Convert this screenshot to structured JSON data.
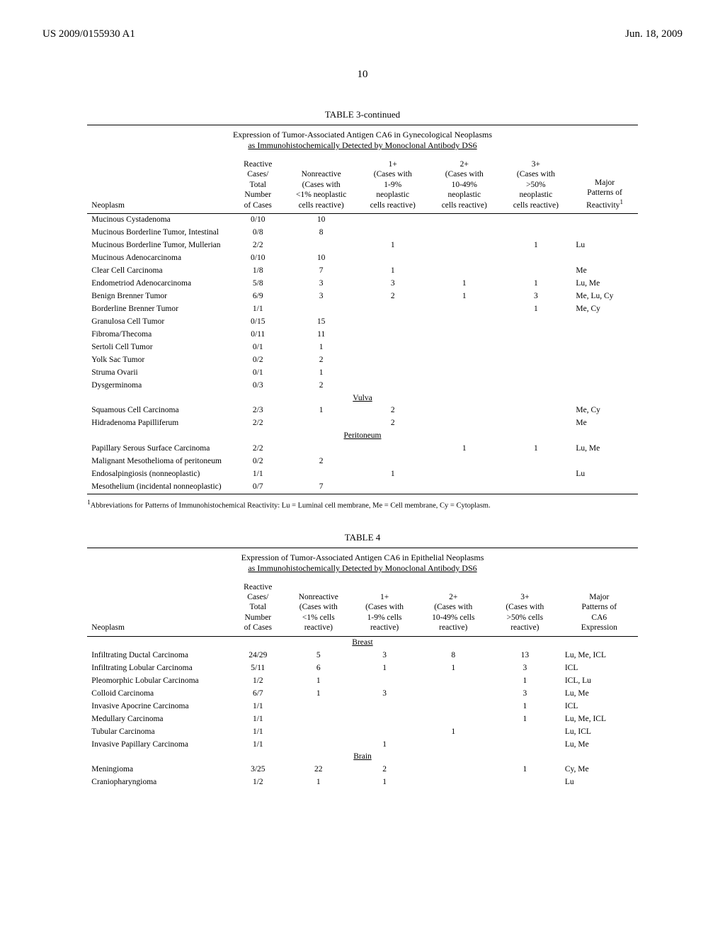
{
  "header": {
    "left": "US 2009/0155930 A1",
    "right": "Jun. 18, 2009"
  },
  "page_number": "10",
  "table3": {
    "title": "TABLE 3-continued",
    "caption": "Expression of Tumor-Associated Antigen CA6 in Gynecological Neoplasms",
    "subcaption": "as Immunohistochemically Detected by Monoclonal Antibody DS6",
    "columns": {
      "c0": "Neoplasm",
      "c1": "Reactive\nCases/\nTotal\nNumber\nof Cases",
      "c2": "Nonreactive\n(Cases with\n<1% neoplastic\ncells reactive)",
      "c3": "1+\n(Cases with\n1-9%\nneoplastic\ncells reactive)",
      "c4": "2+\n(Cases with\n10-49%\nneoplastic\ncells reactive)",
      "c5": "3+\n(Cases with\n>50%\nneoplastic\ncells reactive)",
      "c6": "Major\nPatterns of\nReactivity"
    },
    "c6_sup": "1",
    "rows": [
      {
        "c0": "Mucinous Cystadenoma",
        "c1": "0/10",
        "c2": "10",
        "c3": "",
        "c4": "",
        "c5": "",
        "c6": ""
      },
      {
        "c0": "Mucinous Borderline Tumor, Intestinal",
        "c1": "0/8",
        "c2": "8",
        "c3": "",
        "c4": "",
        "c5": "",
        "c6": ""
      },
      {
        "c0": "Mucinous Borderline Tumor, Mullerian",
        "c1": "2/2",
        "c2": "",
        "c3": "1",
        "c4": "",
        "c5": "1",
        "c6": "Lu"
      },
      {
        "c0": "Mucinous Adenocarcinoma",
        "c1": "0/10",
        "c2": "10",
        "c3": "",
        "c4": "",
        "c5": "",
        "c6": ""
      },
      {
        "c0": "Clear Cell Carcinoma",
        "c1": "1/8",
        "c2": "7",
        "c3": "1",
        "c4": "",
        "c5": "",
        "c6": "Me"
      },
      {
        "c0": "Endometriod Adenocarcinoma",
        "c1": "5/8",
        "c2": "3",
        "c3": "3",
        "c4": "1",
        "c5": "1",
        "c6": "Lu, Me"
      },
      {
        "c0": "Benign Brenner Tumor",
        "c1": "6/9",
        "c2": "3",
        "c3": "2",
        "c4": "1",
        "c5": "3",
        "c6": "Me, Lu, Cy"
      },
      {
        "c0": "Borderline Brenner Tumor",
        "c1": "1/1",
        "c2": "",
        "c3": "",
        "c4": "",
        "c5": "1",
        "c6": "Me, Cy"
      },
      {
        "c0": "Granulosa Cell Tumor",
        "c1": "0/15",
        "c2": "15",
        "c3": "",
        "c4": "",
        "c5": "",
        "c6": ""
      },
      {
        "c0": "Fibroma/Thecoma",
        "c1": "0/11",
        "c2": "11",
        "c3": "",
        "c4": "",
        "c5": "",
        "c6": ""
      },
      {
        "c0": "Sertoli Cell Tumor",
        "c1": "0/1",
        "c2": "1",
        "c3": "",
        "c4": "",
        "c5": "",
        "c6": ""
      },
      {
        "c0": "Yolk Sac Tumor",
        "c1": "0/2",
        "c2": "2",
        "c3": "",
        "c4": "",
        "c5": "",
        "c6": ""
      },
      {
        "c0": "Struma Ovarii",
        "c1": "0/1",
        "c2": "1",
        "c3": "",
        "c4": "",
        "c5": "",
        "c6": ""
      },
      {
        "c0": "Dysgerminoma",
        "c1": "0/3",
        "c2": "2",
        "c3": "",
        "c4": "",
        "c5": "",
        "c6": ""
      }
    ],
    "section_vulva": "Vulva",
    "rows_vulva": [
      {
        "c0": "Squamous Cell Carcinoma",
        "c1": "2/3",
        "c2": "1",
        "c3": "2",
        "c4": "",
        "c5": "",
        "c6": "Me, Cy"
      },
      {
        "c0": "Hidradenoma Papilliferum",
        "c1": "2/2",
        "c2": "",
        "c3": "2",
        "c4": "",
        "c5": "",
        "c6": "Me"
      }
    ],
    "section_peri": "Peritoneum",
    "rows_peri": [
      {
        "c0": "Papillary Serous Surface Carcinoma",
        "c1": "2/2",
        "c2": "",
        "c3": "",
        "c4": "1",
        "c5": "1",
        "c6": "Lu, Me"
      },
      {
        "c0": "Malignant Mesothelioma of peritoneum",
        "c1": "0/2",
        "c2": "2",
        "c3": "",
        "c4": "",
        "c5": "",
        "c6": ""
      },
      {
        "c0": "Endosalpingiosis (nonneoplastic)",
        "c1": "1/1",
        "c2": "",
        "c3": "1",
        "c4": "",
        "c5": "",
        "c6": "Lu"
      },
      {
        "c0": "Mesothelium (incidental nonneoplastic)",
        "c1": "0/7",
        "c2": "7",
        "c3": "",
        "c4": "",
        "c5": "",
        "c6": ""
      }
    ],
    "footnote_sup": "1",
    "footnote": "Abbreviations for Patterns of Immunohistochemical Reactivity: Lu = Luminal cell membrane, Me = Cell membrane, Cy = Cytoplasm."
  },
  "table4": {
    "title": "TABLE 4",
    "caption": "Expression of Tumor-Associated Antigen CA6 in Epithelial Neoplasms",
    "subcaption": "as Immunohistochemically Detected by Monoclonal Antibody DS6",
    "columns": {
      "c0": "Neoplasm",
      "c1": "Reactive\nCases/\nTotal\nNumber\nof Cases",
      "c2": "Nonreactive\n(Cases with\n<1% cells\nreactive)",
      "c3": "1+\n(Cases with\n1-9% cells\nreactive)",
      "c4": "2+\n(Cases with\n10-49% cells\nreactive)",
      "c5": "3+\n(Cases with\n>50% cells\nreactive)",
      "c6": "Major\nPatterns of\nCA6\nExpression"
    },
    "section_breast": "Breast",
    "rows_breast": [
      {
        "c0": "Infiltrating Ductal Carcinoma",
        "c1": "24/29",
        "c2": "5",
        "c3": "3",
        "c4": "8",
        "c5": "13",
        "c6": "Lu, Me, ICL"
      },
      {
        "c0": "Infiltrating Lobular Carcinoma",
        "c1": "5/11",
        "c2": "6",
        "c3": "1",
        "c4": "1",
        "c5": "3",
        "c6": "ICL"
      },
      {
        "c0": "Pleomorphic Lobular Carcinoma",
        "c1": "1/2",
        "c2": "1",
        "c3": "",
        "c4": "",
        "c5": "1",
        "c6": "ICL, Lu"
      },
      {
        "c0": "Colloid Carcinoma",
        "c1": "6/7",
        "c2": "1",
        "c3": "3",
        "c4": "",
        "c5": "3",
        "c6": "Lu, Me"
      },
      {
        "c0": "Invasive Apocrine Carcinoma",
        "c1": "1/1",
        "c2": "",
        "c3": "",
        "c4": "",
        "c5": "1",
        "c6": "ICL"
      },
      {
        "c0": "Medullary Carcinoma",
        "c1": "1/1",
        "c2": "",
        "c3": "",
        "c4": "",
        "c5": "1",
        "c6": "Lu, Me, ICL"
      },
      {
        "c0": "Tubular Carcinoma",
        "c1": "1/1",
        "c2": "",
        "c3": "",
        "c4": "1",
        "c5": "",
        "c6": "Lu, ICL"
      },
      {
        "c0": "Invasive Papillary Carcinoma",
        "c1": "1/1",
        "c2": "",
        "c3": "1",
        "c4": "",
        "c5": "",
        "c6": "Lu, Me"
      }
    ],
    "section_brain": "Brain",
    "rows_brain": [
      {
        "c0": "Meningioma",
        "c1": "3/25",
        "c2": "22",
        "c3": "2",
        "c4": "",
        "c5": "1",
        "c6": "Cy, Me"
      },
      {
        "c0": "Craniopharyngioma",
        "c1": "1/2",
        "c2": "1",
        "c3": "1",
        "c4": "",
        "c5": "",
        "c6": "Lu"
      }
    ]
  }
}
